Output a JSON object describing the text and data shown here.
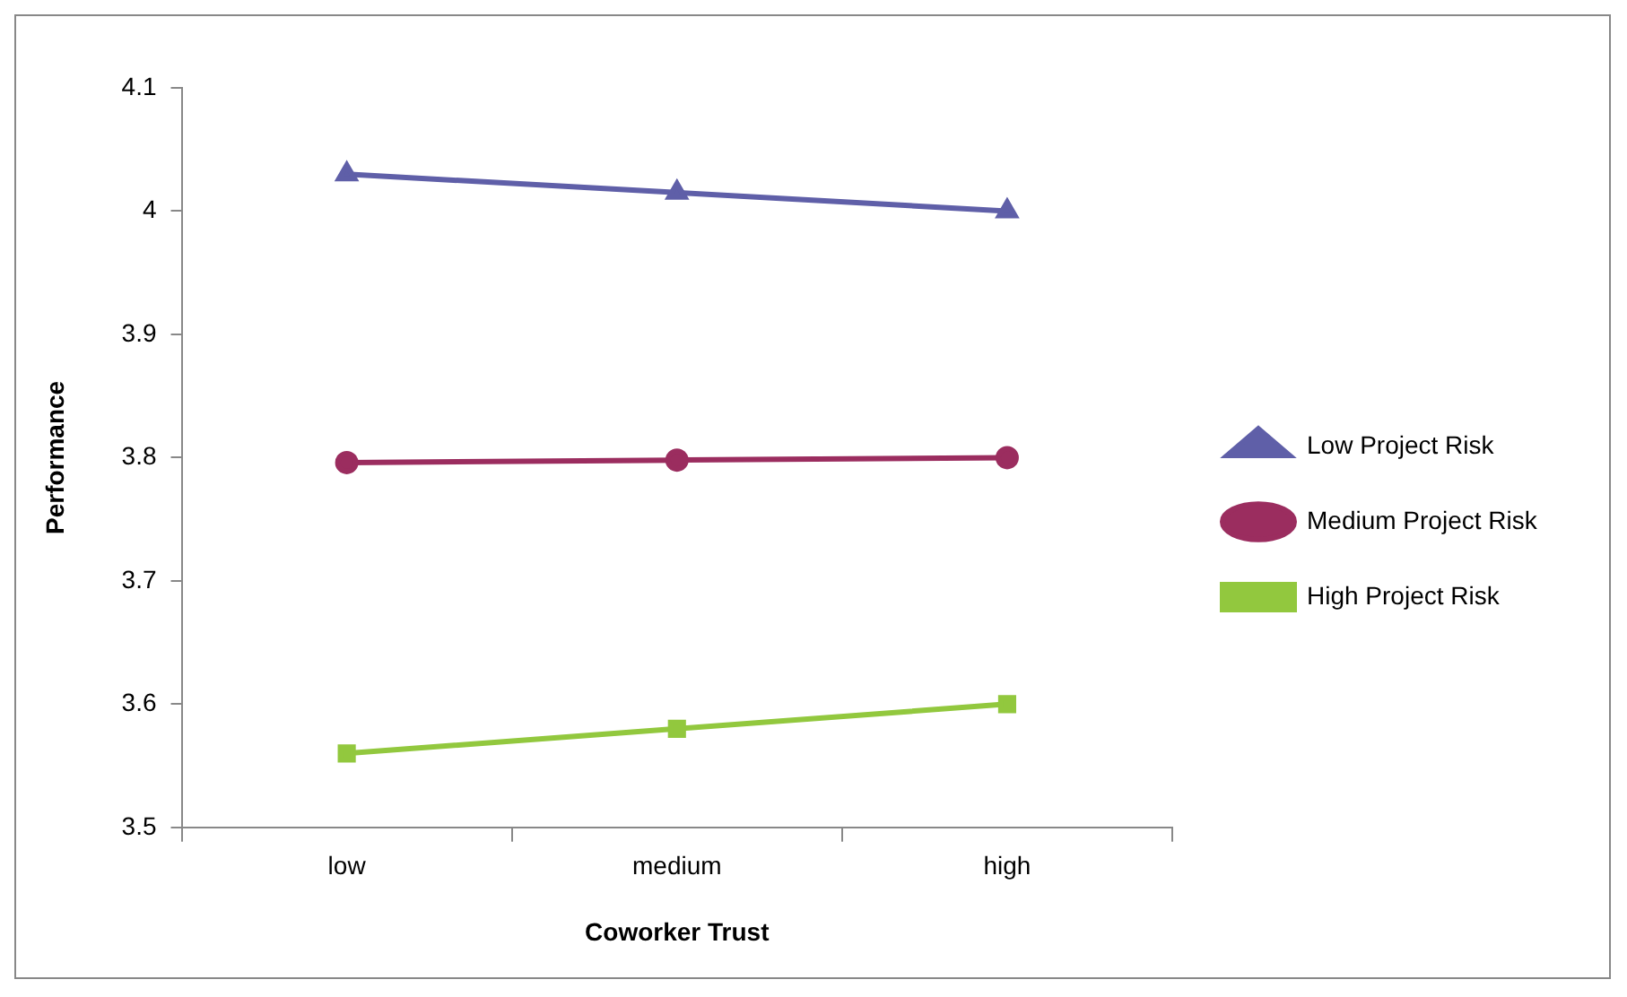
{
  "chart_data": {
    "type": "line",
    "xlabel": "Coworker Trust",
    "ylabel": "Performance",
    "categories": [
      "low",
      "medium",
      "high"
    ],
    "series": [
      {
        "name": "Low Project Risk",
        "color": "#5f5fa8",
        "marker": "triangle",
        "values": [
          4.03,
          4.015,
          4.0
        ]
      },
      {
        "name": "Medium Project Risk",
        "color": "#9b2d5f",
        "marker": "circle",
        "values": [
          3.796,
          3.798,
          3.8
        ]
      },
      {
        "name": "High Project Risk",
        "color": "#92c83e",
        "marker": "square",
        "values": [
          3.56,
          3.58,
          3.6
        ]
      }
    ],
    "ylim": [
      3.5,
      4.1
    ],
    "yticks": [
      3.5,
      3.6,
      3.7,
      3.8,
      3.9,
      4,
      4.1
    ],
    "grid": false,
    "legend": "right"
  }
}
